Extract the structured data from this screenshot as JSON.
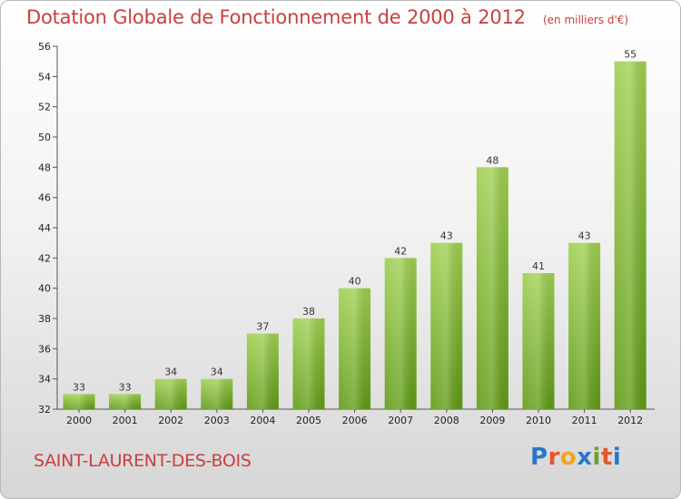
{
  "header": {
    "title": "Dotation Globale de Fonctionnement de 2000 à 2012",
    "unit": "(en milliers d'€)"
  },
  "footer": {
    "place": "SAINT-LAURENT-DES-BOIS",
    "logo_text": "Proxiti",
    "logo_letter_colors": [
      "#2a76c9",
      "#e2572b",
      "#f2a51b",
      "#2a76c9",
      "#6aa52a",
      "#e2572b",
      "#2a76c9"
    ]
  },
  "chart_data": {
    "type": "bar",
    "title": "Dotation Globale de Fonctionnement de 2000 à 2012",
    "subtitle": "(en milliers d'€)",
    "xlabel": "",
    "ylabel": "",
    "categories": [
      "2000",
      "2001",
      "2002",
      "2003",
      "2004",
      "2005",
      "2006",
      "2007",
      "2008",
      "2009",
      "2010",
      "2011",
      "2012"
    ],
    "values": [
      33,
      33,
      34,
      34,
      37,
      38,
      40,
      42,
      43,
      48,
      41,
      43,
      55
    ],
    "ylim": [
      32,
      56
    ],
    "yticks": [
      32,
      34,
      36,
      38,
      40,
      42,
      44,
      46,
      48,
      50,
      52,
      54,
      56
    ],
    "grid": false,
    "legend": "none",
    "bar_color_top": "#9fd050",
    "bar_color_bottom": "#5f9a14"
  }
}
